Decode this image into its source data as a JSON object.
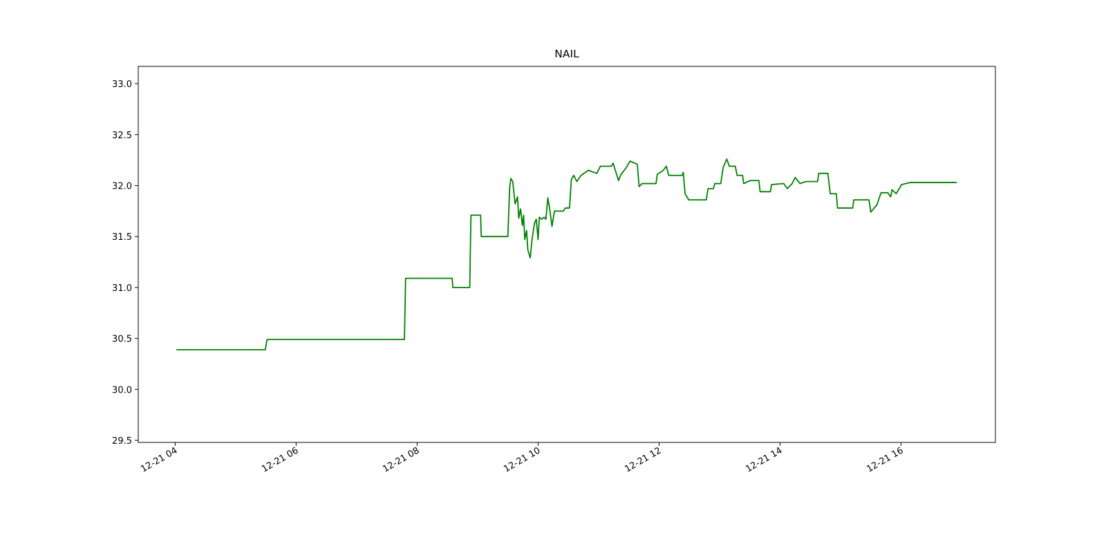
{
  "chart_data": {
    "type": "line",
    "title": "NAIL",
    "color": "#008000",
    "grid": false,
    "x": [
      4.02,
      5.49,
      5.52,
      7.79,
      7.81,
      8.58,
      8.59,
      8.87,
      8.89,
      9.05,
      9.06,
      9.5,
      9.53,
      9.55,
      9.58,
      9.62,
      9.66,
      9.68,
      9.71,
      9.74,
      9.76,
      9.78,
      9.81,
      9.83,
      9.87,
      9.9,
      9.94,
      9.97,
      10.0,
      10.02,
      10.06,
      10.1,
      10.13,
      10.16,
      10.19,
      10.23,
      10.27,
      10.42,
      10.45,
      10.52,
      10.55,
      10.59,
      10.64,
      10.71,
      10.83,
      10.97,
      11.03,
      11.21,
      11.24,
      11.33,
      11.37,
      11.45,
      11.52,
      11.64,
      11.67,
      11.72,
      11.95,
      11.97,
      12.07,
      12.12,
      12.16,
      12.38,
      12.4,
      12.43,
      12.49,
      12.78,
      12.81,
      12.9,
      12.92,
      13.02,
      13.06,
      13.12,
      13.16,
      13.26,
      13.29,
      13.38,
      13.4,
      13.51,
      13.65,
      13.67,
      13.84,
      13.86,
      14.06,
      14.12,
      14.2,
      14.25,
      14.33,
      14.43,
      14.62,
      14.64,
      14.79,
      14.83,
      14.93,
      14.95,
      15.2,
      15.22,
      15.47,
      15.5,
      15.6,
      15.67,
      15.78,
      15.83,
      15.85,
      15.92,
      16.01,
      16.08,
      16.15,
      16.92
    ],
    "values": [
      30.39,
      30.39,
      30.49,
      30.49,
      31.09,
      31.09,
      31.0,
      31.0,
      31.71,
      31.71,
      31.5,
      31.5,
      31.98,
      32.07,
      32.04,
      31.82,
      31.89,
      31.68,
      31.77,
      31.61,
      31.71,
      31.47,
      31.56,
      31.37,
      31.29,
      31.47,
      31.63,
      31.67,
      31.47,
      31.69,
      31.67,
      31.69,
      31.67,
      31.88,
      31.78,
      31.6,
      31.75,
      31.75,
      31.78,
      31.78,
      32.06,
      32.1,
      32.04,
      32.1,
      32.15,
      32.12,
      32.19,
      32.19,
      32.22,
      32.05,
      32.11,
      32.17,
      32.24,
      32.21,
      31.99,
      32.02,
      32.02,
      32.11,
      32.15,
      32.19,
      32.1,
      32.1,
      32.13,
      31.92,
      31.86,
      31.86,
      31.97,
      31.97,
      32.02,
      32.02,
      32.18,
      32.26,
      32.19,
      32.19,
      32.1,
      32.1,
      32.02,
      32.05,
      32.05,
      31.94,
      31.94,
      32.01,
      32.02,
      31.97,
      32.02,
      32.08,
      32.02,
      32.04,
      32.04,
      32.12,
      32.12,
      31.92,
      31.92,
      31.78,
      31.78,
      31.86,
      31.86,
      31.74,
      31.81,
      31.93,
      31.93,
      31.89,
      31.96,
      31.92,
      32.01,
      32.02,
      32.03,
      32.03
    ],
    "xlim": [
      3.39,
      17.56
    ],
    "xticks": [
      {
        "value": 4,
        "label": "12-21 04"
      },
      {
        "value": 6,
        "label": "12-21 06"
      },
      {
        "value": 8,
        "label": "12-21 08"
      },
      {
        "value": 10,
        "label": "12-21 10"
      },
      {
        "value": 12,
        "label": "12-21 12"
      },
      {
        "value": 14,
        "label": "12-21 14"
      },
      {
        "value": 16,
        "label": "12-21 16"
      }
    ],
    "ylim": [
      29.48,
      33.17
    ],
    "yticks": [
      {
        "value": 29.5,
        "label": "29.5"
      },
      {
        "value": 30,
        "label": "30.0"
      },
      {
        "value": 30.5,
        "label": "30.5"
      },
      {
        "value": 31,
        "label": "31.0"
      },
      {
        "value": 31.5,
        "label": "31.5"
      },
      {
        "value": 32,
        "label": "32.0"
      },
      {
        "value": 32.5,
        "label": "32.5"
      },
      {
        "value": 33,
        "label": "33.0"
      }
    ]
  }
}
